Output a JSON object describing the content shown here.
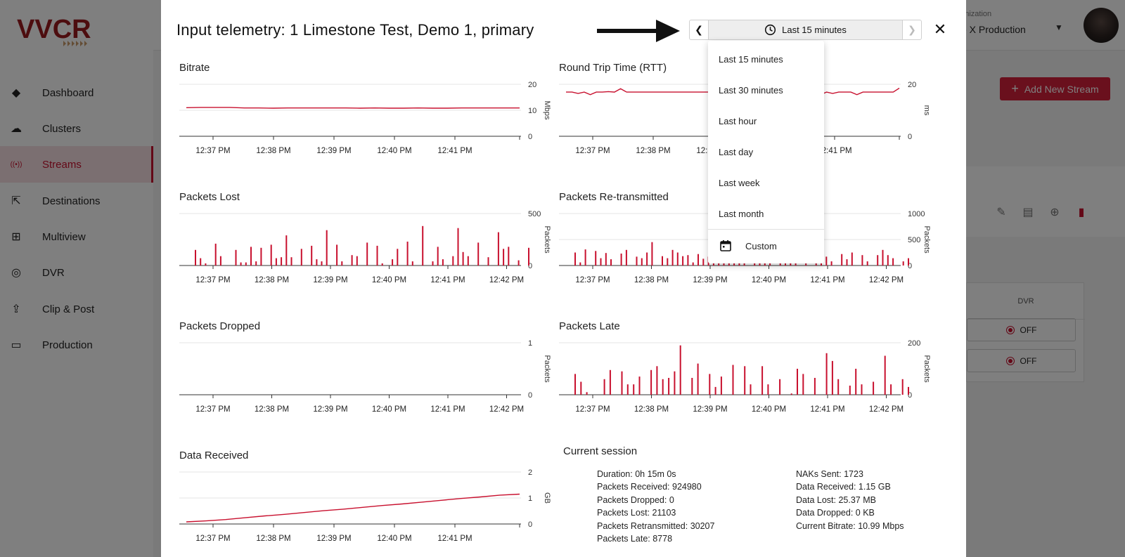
{
  "brand": {
    "logo_text": "VVCR",
    "accent": "#c8102e"
  },
  "sidebar": {
    "items": [
      {
        "label": "Dashboard",
        "icon": "layers-icon"
      },
      {
        "label": "Clusters",
        "icon": "cloud-icon"
      },
      {
        "label": "Streams",
        "icon": "broadcast-icon",
        "active": true
      },
      {
        "label": "Destinations",
        "icon": "external-link-icon"
      },
      {
        "label": "Multiview",
        "icon": "grid-icon"
      },
      {
        "label": "DVR",
        "icon": "record-icon"
      },
      {
        "label": "Clip & Post",
        "icon": "cloud-upload-icon"
      },
      {
        "label": "Production",
        "icon": "video-camera-icon"
      }
    ]
  },
  "topbar": {
    "org_label": "ganization",
    "org_value": "ve X Production"
  },
  "page": {
    "add_button_label": "Add New Stream",
    "table_header": "DVR",
    "dvr_rows": [
      "OFF",
      "OFF"
    ]
  },
  "modal": {
    "title": "Input telemetry: 1 Limestone Test, Demo 1, primary",
    "range_label": "Last 15 minutes",
    "dropdown_options": [
      "Last 15 minutes",
      "Last 30 minutes",
      "Last hour",
      "Last day",
      "Last week",
      "Last month"
    ],
    "dropdown_custom": "Custom",
    "session": {
      "title": "Current session",
      "left": [
        "Duration: 0h 15m 0s",
        "Packets Received: 924980",
        "Packets Dropped: 0",
        "Packets Lost: 21103",
        "Packets Retransmitted: 30207",
        "Packets Late: 8778"
      ],
      "right": [
        "NAKs Sent: 1723",
        "Data Received: 1.15 GB",
        "Data Lost: 25.37 MB",
        "Data Dropped: 0 KB",
        "Current Bitrate: 10.99 Mbps"
      ]
    }
  },
  "chart_data": [
    {
      "id": "bitrate",
      "type": "line",
      "title": "Bitrate",
      "ylabel": "Mbps",
      "ylim": [
        0,
        20
      ],
      "yticks": [
        0,
        10,
        20
      ],
      "xticks": [
        "12:37 PM",
        "12:38 PM",
        "12:39 PM",
        "12:40 PM",
        "12:41 PM"
      ],
      "values": [
        11,
        11.1,
        11.1,
        11.1,
        10.9,
        10.9,
        10.8,
        10.9,
        10.9,
        10.9,
        10.9,
        10.9,
        10.8,
        10.9,
        10.8,
        10.8,
        10.9,
        10.8,
        10.8,
        10.9,
        10.9,
        10.9,
        10.9,
        10.9
      ]
    },
    {
      "id": "rtt",
      "type": "line",
      "title": "Round Trip Time (RTT)",
      "ylabel": "ms",
      "ylim": [
        0,
        20
      ],
      "yticks": [
        0,
        20
      ],
      "xticks": [
        "12:37 PM",
        "12:38 PM",
        "12:39 PM",
        "12:40 PM",
        "12:41 PM"
      ],
      "values": [
        17,
        17,
        16.5,
        17,
        16,
        17,
        17,
        17.2,
        17,
        18.3,
        17,
        17,
        17,
        17,
        17,
        17,
        17,
        17,
        17,
        17,
        17,
        17,
        17,
        17,
        17,
        17,
        17,
        17,
        17,
        17,
        17,
        17,
        17,
        17,
        17,
        16.5,
        17,
        17,
        16,
        17,
        17,
        17,
        16,
        17,
        16.5,
        17,
        17,
        17,
        16,
        17,
        17,
        17,
        17,
        17,
        17,
        18.5
      ]
    },
    {
      "id": "packets_lost",
      "type": "bar",
      "title": "Packets Lost",
      "ylabel": "Packets",
      "ylim": [
        0,
        500
      ],
      "yticks": [
        0,
        500
      ],
      "xticks": [
        "12:37 PM",
        "12:38 PM",
        "12:39 PM",
        "12:40 PM",
        "12:41 PM",
        "12:42 PM"
      ],
      "values": [
        150,
        70,
        20,
        0,
        210,
        90,
        0,
        0,
        150,
        30,
        30,
        180,
        40,
        170,
        0,
        200,
        70,
        80,
        290,
        80,
        0,
        160,
        0,
        190,
        60,
        40,
        340,
        0,
        200,
        40,
        0,
        100,
        90,
        0,
        220,
        0,
        190,
        20,
        0,
        60,
        160,
        0,
        230,
        40,
        0,
        380,
        0,
        40,
        180,
        60,
        0,
        90,
        360,
        130,
        90,
        0,
        220,
        0,
        80,
        0,
        320,
        160,
        180,
        0,
        50,
        0,
        170
      ]
    },
    {
      "id": "packets_retx",
      "type": "bar",
      "title": "Packets Re-transmitted",
      "ylabel": "Packets",
      "ylim": [
        0,
        1000
      ],
      "yticks": [
        0,
        500,
        1000
      ],
      "xticks": [
        "12:37 PM",
        "12:38 PM",
        "12:39 PM",
        "12:40 PM",
        "12:41 PM",
        "12:42 PM"
      ],
      "values": [
        250,
        60,
        310,
        0,
        280,
        140,
        240,
        120,
        0,
        230,
        300,
        0,
        170,
        140,
        250,
        450,
        0,
        180,
        140,
        300,
        250,
        180,
        200,
        60,
        220,
        130,
        170,
        260,
        200,
        260,
        120,
        140,
        180,
        380,
        0,
        140,
        230,
        160,
        480,
        0,
        170,
        80,
        200,
        60,
        0,
        350,
        0,
        100,
        150,
        170,
        80,
        0,
        220,
        120,
        250,
        0,
        200,
        80,
        0,
        200,
        300,
        200,
        140,
        0,
        80,
        140
      ]
    },
    {
      "id": "packets_dropped",
      "type": "bar",
      "title": "Packets Dropped",
      "ylabel": "Packets",
      "ylim": [
        0,
        1
      ],
      "yticks": [
        0,
        1
      ],
      "xticks": [
        "12:37 PM",
        "12:38 PM",
        "12:39 PM",
        "12:40 PM",
        "12:41 PM",
        "12:42 PM"
      ],
      "values": []
    },
    {
      "id": "packets_late",
      "type": "bar",
      "title": "Packets Late",
      "ylabel": "Packets",
      "ylim": [
        0,
        200
      ],
      "yticks": [
        0,
        200
      ],
      "xticks": [
        "12:37 PM",
        "12:38 PM",
        "12:39 PM",
        "12:40 PM",
        "12:41 PM",
        "12:42 PM"
      ],
      "values": [
        80,
        50,
        10,
        0,
        0,
        60,
        95,
        0,
        90,
        40,
        40,
        70,
        0,
        95,
        110,
        60,
        65,
        90,
        190,
        0,
        65,
        120,
        0,
        80,
        30,
        70,
        0,
        115,
        0,
        110,
        40,
        0,
        110,
        40,
        0,
        60,
        0,
        5,
        100,
        80,
        0,
        65,
        0,
        160,
        130,
        60,
        0,
        35,
        100,
        40,
        0,
        50,
        0,
        150,
        40,
        0,
        60,
        30
      ]
    },
    {
      "id": "data_received",
      "type": "line",
      "title": "Data Received",
      "ylabel": "GB",
      "ylim": [
        0,
        2
      ],
      "yticks": [
        0,
        1,
        2
      ],
      "xticks": [
        "12:37 PM",
        "12:38 PM",
        "12:39 PM",
        "12:40 PM",
        "12:41 PM"
      ],
      "values": [
        0.08,
        0.12,
        0.17,
        0.24,
        0.31,
        0.37,
        0.44,
        0.51,
        0.57,
        0.64,
        0.71,
        0.77,
        0.84,
        0.91,
        0.98,
        1.04,
        1.11,
        1.15
      ]
    }
  ]
}
